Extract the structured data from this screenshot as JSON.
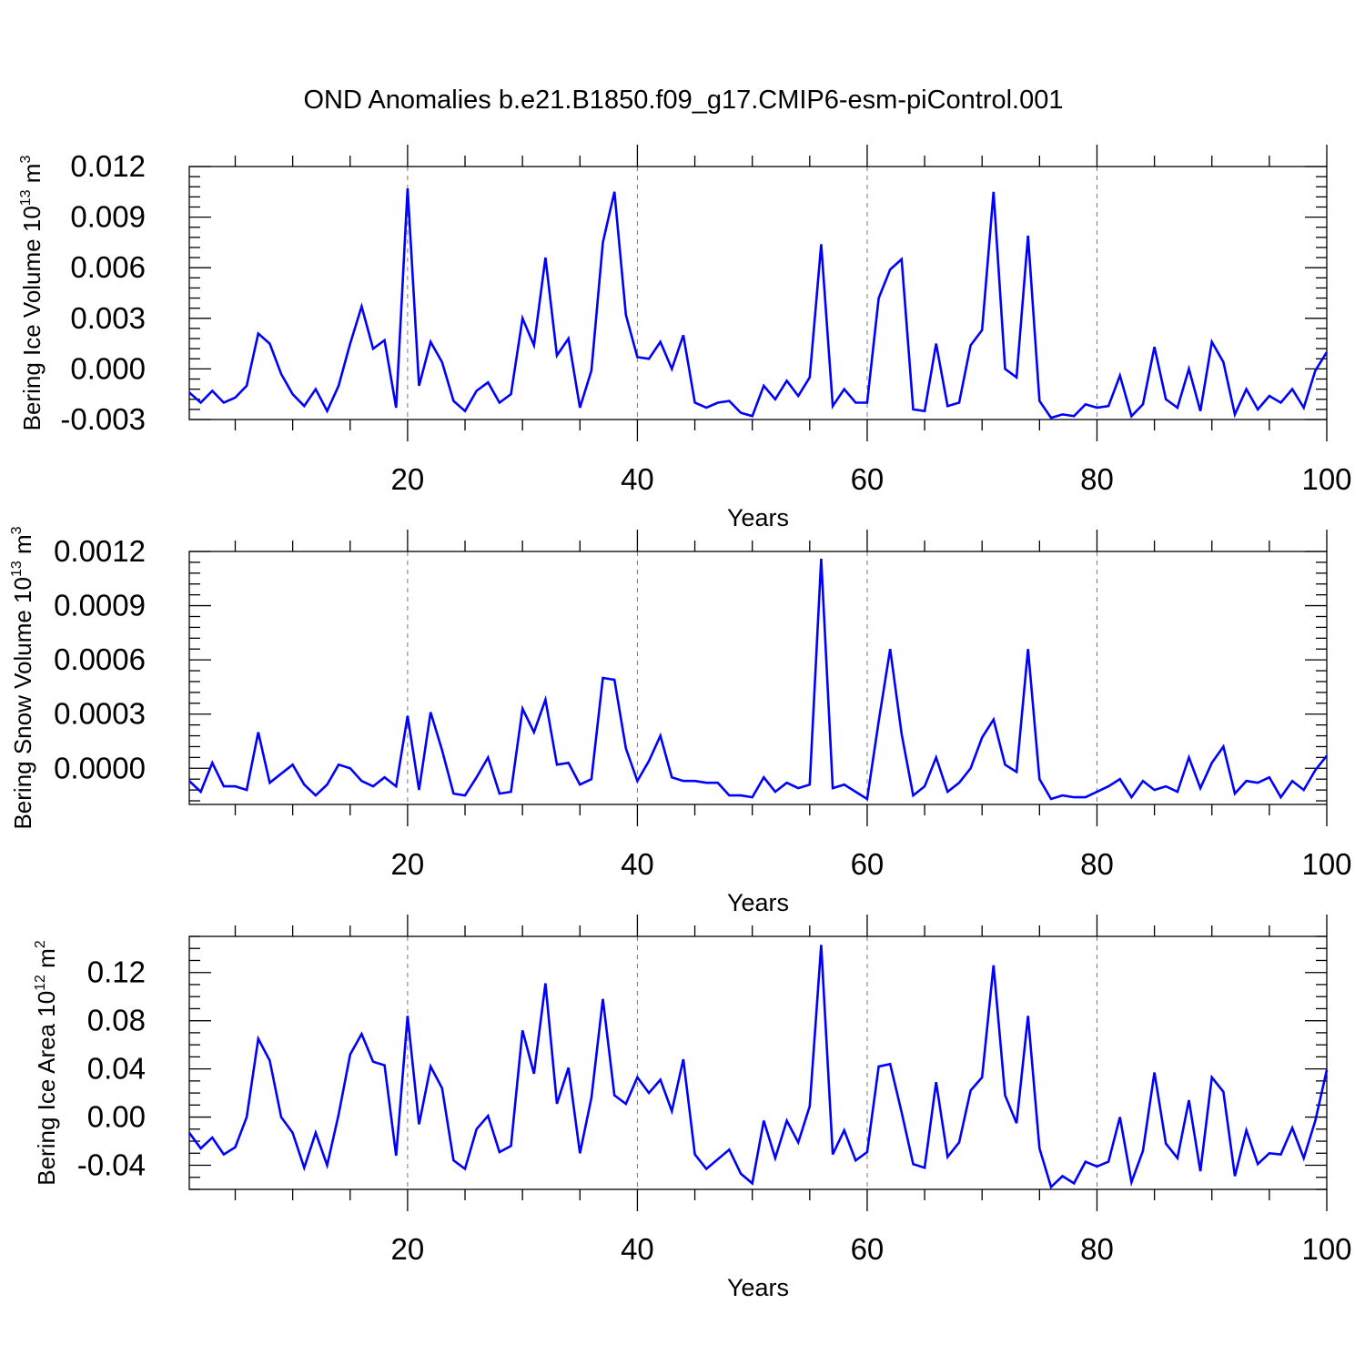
{
  "title": "OND Anomalies b.e21.B1850.f09_g17.CMIP6-esm-piControl.001",
  "colors": {
    "line": "#0000ff",
    "axis": "#000000",
    "grid": "#777777"
  },
  "chart_data": [
    {
      "type": "line",
      "title": "OND Anomalies b.e21.B1850.f09_g17.CMIP6-esm-piControl.001",
      "xlabel": "Years",
      "ylabel": {
        "main": "Bering Ice Volume 10",
        "exp": "13",
        "unit": " m",
        "unit_exp": "3"
      },
      "xlim": [
        1,
        100
      ],
      "ylim": [
        -0.003,
        0.012
      ],
      "xticks": [
        20,
        40,
        60,
        80,
        100
      ],
      "yticks": [
        -0.003,
        0.0,
        0.003,
        0.006,
        0.009,
        0.012
      ],
      "ytick_labels": [
        "-0.003",
        "0.000",
        "0.003",
        "0.006",
        "0.009",
        "0.012"
      ],
      "grid_x": [
        20,
        40,
        60,
        80
      ],
      "series": [
        {
          "name": "Bering Ice Volume",
          "x": [
            1,
            2,
            3,
            4,
            5,
            6,
            7,
            8,
            9,
            10,
            11,
            12,
            13,
            14,
            15,
            16,
            17,
            18,
            19,
            20,
            21,
            22,
            23,
            24,
            25,
            26,
            27,
            28,
            29,
            30,
            31,
            32,
            33,
            34,
            35,
            36,
            37,
            38,
            39,
            40,
            41,
            42,
            43,
            44,
            45,
            46,
            47,
            48,
            49,
            50,
            51,
            52,
            53,
            54,
            55,
            56,
            57,
            58,
            59,
            60,
            61,
            62,
            63,
            64,
            65,
            66,
            67,
            68,
            69,
            70,
            71,
            72,
            73,
            74,
            75,
            76,
            77,
            78,
            79,
            80,
            81,
            82,
            83,
            84,
            85,
            86,
            87,
            88,
            89,
            90,
            91,
            92,
            93,
            94,
            95,
            96,
            97,
            98,
            99,
            100
          ],
          "values": [
            -0.0014,
            -0.002,
            -0.0013,
            -0.002,
            -0.0017,
            -0.001,
            0.0021,
            0.0015,
            -0.0003,
            -0.0015,
            -0.0022,
            -0.0012,
            -0.0025,
            -0.001,
            0.0015,
            0.0037,
            0.0012,
            0.0017,
            -0.0023,
            0.0107,
            -0.001,
            0.0016,
            0.0004,
            -0.0019,
            -0.0025,
            -0.0013,
            -0.0008,
            -0.002,
            -0.0015,
            0.003,
            0.0014,
            0.0066,
            0.0008,
            0.0018,
            -0.0023,
            -0.0001,
            0.0075,
            0.0105,
            0.0032,
            0.0007,
            0.0006,
            0.0016,
            0.0,
            0.002,
            -0.002,
            -0.0023,
            -0.002,
            -0.0019,
            -0.0026,
            -0.0028,
            -0.001,
            -0.0018,
            -0.0007,
            -0.0016,
            -0.0005,
            0.0074,
            -0.0022,
            -0.0012,
            -0.002,
            -0.002,
            0.0042,
            0.0059,
            0.0065,
            -0.0024,
            -0.0025,
            0.0015,
            -0.0022,
            -0.002,
            0.0014,
            0.0023,
            0.0105,
            0.0,
            -0.0005,
            0.0079,
            -0.0019,
            -0.0029,
            -0.0027,
            -0.0028,
            -0.0021,
            -0.0023,
            -0.0022,
            -0.0004,
            -0.0028,
            -0.0021,
            0.0013,
            -0.0018,
            -0.0023,
            0.0,
            -0.0025,
            0.0016,
            0.0004,
            -0.0027,
            -0.0012,
            -0.0024,
            -0.0016,
            -0.002,
            -0.0012,
            -0.0023,
            -0.0001,
            0.001
          ]
        }
      ]
    },
    {
      "type": "line",
      "xlabel": "Years",
      "ylabel": {
        "main": "Bering Snow Volume 10",
        "exp": "13",
        "unit": " m",
        "unit_exp": "3"
      },
      "xlim": [
        1,
        100
      ],
      "ylim": [
        -0.0002,
        0.0012
      ],
      "xticks": [
        20,
        40,
        60,
        80,
        100
      ],
      "yticks": [
        0.0,
        0.0003,
        0.0006,
        0.0009,
        0.0012
      ],
      "ytick_labels": [
        "0.0000",
        "0.0003",
        "0.0006",
        "0.0009",
        "0.0012"
      ],
      "grid_x": [
        20,
        40,
        60,
        80
      ],
      "series": [
        {
          "name": "Bering Snow Volume",
          "x": [
            1,
            2,
            3,
            4,
            5,
            6,
            7,
            8,
            9,
            10,
            11,
            12,
            13,
            14,
            15,
            16,
            17,
            18,
            19,
            20,
            21,
            22,
            23,
            24,
            25,
            26,
            27,
            28,
            29,
            30,
            31,
            32,
            33,
            34,
            35,
            36,
            37,
            38,
            39,
            40,
            41,
            42,
            43,
            44,
            45,
            46,
            47,
            48,
            49,
            50,
            51,
            52,
            53,
            54,
            55,
            56,
            57,
            58,
            59,
            60,
            61,
            62,
            63,
            64,
            65,
            66,
            67,
            68,
            69,
            70,
            71,
            72,
            73,
            74,
            75,
            76,
            77,
            78,
            79,
            80,
            81,
            82,
            83,
            84,
            85,
            86,
            87,
            88,
            89,
            90,
            91,
            92,
            93,
            94,
            95,
            96,
            97,
            98,
            99,
            100
          ],
          "values": [
            -7e-05,
            -0.00013,
            3e-05,
            -0.0001,
            -0.0001,
            -0.00012,
            0.0002,
            -8e-05,
            -3e-05,
            2e-05,
            -9e-05,
            -0.00015,
            -9e-05,
            2e-05,
            0.0,
            -7e-05,
            -0.0001,
            -5e-05,
            -0.0001,
            0.00029,
            -0.00012,
            0.00031,
            0.0001,
            -0.00014,
            -0.00015,
            -5e-05,
            6e-05,
            -0.00014,
            -0.00013,
            0.00033,
            0.0002,
            0.00038,
            2e-05,
            3e-05,
            -9e-05,
            -6e-05,
            0.0005,
            0.00049,
            0.00011,
            -7e-05,
            4e-05,
            0.00018,
            -5e-05,
            -7e-05,
            -7e-05,
            -8e-05,
            -8e-05,
            -0.00015,
            -0.00015,
            -0.00016,
            -5e-05,
            -0.00013,
            -8e-05,
            -0.00011,
            -9e-05,
            0.00116,
            -0.00011,
            -9e-05,
            -0.00013,
            -0.00017,
            0.00026,
            0.00066,
            0.00019,
            -0.00015,
            -0.0001,
            6e-05,
            -0.00013,
            -8e-05,
            0.0,
            0.00017,
            0.00027,
            2e-05,
            -2e-05,
            0.00066,
            -6e-05,
            -0.00017,
            -0.00015,
            -0.00016,
            -0.00016,
            -0.00013,
            -0.0001,
            -6e-05,
            -0.00016,
            -7e-05,
            -0.00012,
            -0.0001,
            -0.00013,
            6e-05,
            -0.00011,
            3e-05,
            0.00012,
            -0.00014,
            -7e-05,
            -8e-05,
            -5e-05,
            -0.00016,
            -7e-05,
            -0.00012,
            -1e-05,
            7e-05
          ]
        }
      ]
    },
    {
      "type": "line",
      "xlabel": "Years",
      "ylabel": {
        "main": "Bering Ice Area 10",
        "exp": "12",
        "unit": " m",
        "unit_exp": "2"
      },
      "xlim": [
        1,
        100
      ],
      "ylim": [
        -0.06,
        0.15
      ],
      "xticks": [
        20,
        40,
        60,
        80,
        100
      ],
      "yticks": [
        -0.04,
        0.0,
        0.04,
        0.08,
        0.12
      ],
      "ytick_labels": [
        "-0.04",
        "0.00",
        "0.04",
        "0.08",
        "0.12"
      ],
      "grid_x": [
        20,
        40,
        60,
        80
      ],
      "series": [
        {
          "name": "Bering Ice Area",
          "x": [
            1,
            2,
            3,
            4,
            5,
            6,
            7,
            8,
            9,
            10,
            11,
            12,
            13,
            14,
            15,
            16,
            17,
            18,
            19,
            20,
            21,
            22,
            23,
            24,
            25,
            26,
            27,
            28,
            29,
            30,
            31,
            32,
            33,
            34,
            35,
            36,
            37,
            38,
            39,
            40,
            41,
            42,
            43,
            44,
            45,
            46,
            47,
            48,
            49,
            50,
            51,
            52,
            53,
            54,
            55,
            56,
            57,
            58,
            59,
            60,
            61,
            62,
            63,
            64,
            65,
            66,
            67,
            68,
            69,
            70,
            71,
            72,
            73,
            74,
            75,
            76,
            77,
            78,
            79,
            80,
            81,
            82,
            83,
            84,
            85,
            86,
            87,
            88,
            89,
            90,
            91,
            92,
            93,
            94,
            95,
            96,
            97,
            98,
            99,
            100
          ],
          "values": [
            -0.013,
            -0.026,
            -0.017,
            -0.031,
            -0.025,
            0.0,
            0.065,
            0.047,
            0.0,
            -0.013,
            -0.042,
            -0.013,
            -0.04,
            0.002,
            0.052,
            0.069,
            0.046,
            0.043,
            -0.032,
            0.084,
            -0.006,
            0.042,
            0.024,
            -0.036,
            -0.043,
            -0.01,
            0.001,
            -0.029,
            -0.024,
            0.072,
            0.036,
            0.111,
            0.011,
            0.041,
            -0.03,
            0.016,
            0.098,
            0.018,
            0.011,
            0.033,
            0.02,
            0.031,
            0.005,
            0.048,
            -0.031,
            -0.043,
            -0.035,
            -0.027,
            -0.047,
            -0.055,
            -0.003,
            -0.034,
            -0.003,
            -0.021,
            0.009,
            0.143,
            -0.031,
            -0.011,
            -0.036,
            -0.029,
            0.042,
            0.044,
            0.004,
            -0.039,
            -0.042,
            0.029,
            -0.033,
            -0.021,
            0.022,
            0.033,
            0.126,
            0.018,
            -0.005,
            0.084,
            -0.026,
            -0.058,
            -0.049,
            -0.055,
            -0.037,
            -0.041,
            -0.037,
            0.0,
            -0.054,
            -0.028,
            0.037,
            -0.022,
            -0.034,
            0.014,
            -0.045,
            0.033,
            0.021,
            -0.049,
            -0.011,
            -0.039,
            -0.03,
            -0.031,
            -0.009,
            -0.034,
            -0.003,
            0.039
          ]
        }
      ]
    }
  ]
}
